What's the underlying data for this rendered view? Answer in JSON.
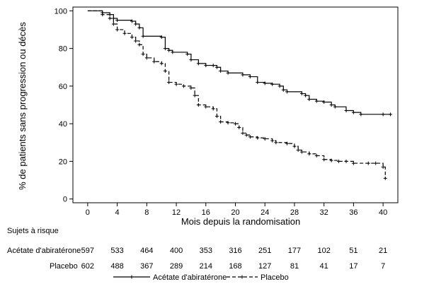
{
  "chart_data": {
    "type": "line",
    "title": "",
    "xlabel": "Mois depuis la randomisation",
    "ylabel": "% de patients sans progression ou décès",
    "xlim": [
      -2,
      42
    ],
    "ylim": [
      -2,
      102
    ],
    "x_ticks": [
      0,
      4,
      8,
      12,
      16,
      20,
      24,
      28,
      32,
      36,
      40
    ],
    "y_ticks": [
      0,
      20,
      40,
      60,
      80,
      100
    ],
    "grid": false,
    "legend_position": "bottom-center",
    "series": [
      {
        "name": "Acétate d'abiratérone",
        "style": "solid",
        "color": "#000000",
        "points": [
          [
            0,
            100
          ],
          [
            2,
            99
          ],
          [
            3,
            98
          ],
          [
            3.5,
            96
          ],
          [
            4,
            95
          ],
          [
            6,
            94.5
          ],
          [
            6.5,
            93
          ],
          [
            7,
            91
          ],
          [
            7.5,
            86.5
          ],
          [
            10,
            86
          ],
          [
            10.5,
            80
          ],
          [
            11,
            79
          ],
          [
            11.5,
            78
          ],
          [
            13.5,
            77
          ],
          [
            14,
            74
          ],
          [
            15,
            72
          ],
          [
            16,
            71
          ],
          [
            17,
            71
          ],
          [
            17.5,
            70
          ],
          [
            18,
            68
          ],
          [
            19,
            67
          ],
          [
            21,
            66
          ],
          [
            22,
            65
          ],
          [
            23,
            62
          ],
          [
            24,
            61.5
          ],
          [
            25,
            61
          ],
          [
            26,
            60
          ],
          [
            26.5,
            58
          ],
          [
            27,
            57
          ],
          [
            29,
            56
          ],
          [
            29.5,
            55
          ],
          [
            30,
            53
          ],
          [
            31,
            52
          ],
          [
            32,
            51.5
          ],
          [
            33,
            50
          ],
          [
            33.5,
            49
          ],
          [
            35,
            47
          ],
          [
            36,
            46
          ],
          [
            37,
            45
          ],
          [
            40,
            45
          ],
          [
            41,
            45
          ]
        ]
      },
      {
        "name": "Placebo",
        "style": "dashed",
        "color": "#000000",
        "points": [
          [
            0,
            100
          ],
          [
            2,
            98
          ],
          [
            3,
            96
          ],
          [
            3.5,
            93
          ],
          [
            4,
            90
          ],
          [
            5,
            88
          ],
          [
            6,
            86
          ],
          [
            6.5,
            84
          ],
          [
            7,
            82
          ],
          [
            7.5,
            77
          ],
          [
            8,
            75
          ],
          [
            9,
            73
          ],
          [
            10,
            72
          ],
          [
            10.5,
            68
          ],
          [
            11,
            62
          ],
          [
            12,
            61
          ],
          [
            13,
            60
          ],
          [
            14,
            59
          ],
          [
            14.5,
            55
          ],
          [
            15,
            50
          ],
          [
            16,
            49
          ],
          [
            17,
            48
          ],
          [
            17.5,
            44
          ],
          [
            18,
            41
          ],
          [
            19,
            40.5
          ],
          [
            20,
            40
          ],
          [
            20.5,
            38
          ],
          [
            21,
            35
          ],
          [
            21.5,
            34
          ],
          [
            22,
            33
          ],
          [
            23,
            32.5
          ],
          [
            24,
            32
          ],
          [
            25,
            31
          ],
          [
            25.5,
            30
          ],
          [
            27,
            29.5
          ],
          [
            28,
            28
          ],
          [
            28.5,
            26
          ],
          [
            29,
            25
          ],
          [
            30,
            24
          ],
          [
            31,
            23
          ],
          [
            32,
            21
          ],
          [
            33,
            20.5
          ],
          [
            34,
            20
          ],
          [
            35,
            20
          ],
          [
            36,
            19
          ],
          [
            38,
            19
          ],
          [
            39,
            19
          ],
          [
            40,
            17
          ],
          [
            40.3,
            11
          ]
        ]
      }
    ]
  },
  "risk_table": {
    "header": "Sujets à risque",
    "rows": [
      {
        "label": "Acétate d'abiratérone",
        "values": [
          "597",
          "533",
          "464",
          "400",
          "353",
          "316",
          "251",
          "177",
          "102",
          "51",
          "21"
        ]
      },
      {
        "label": "Placebo",
        "values": [
          "602",
          "488",
          "367",
          "289",
          "214",
          "168",
          "127",
          "81",
          "41",
          "17",
          "7"
        ]
      }
    ]
  }
}
